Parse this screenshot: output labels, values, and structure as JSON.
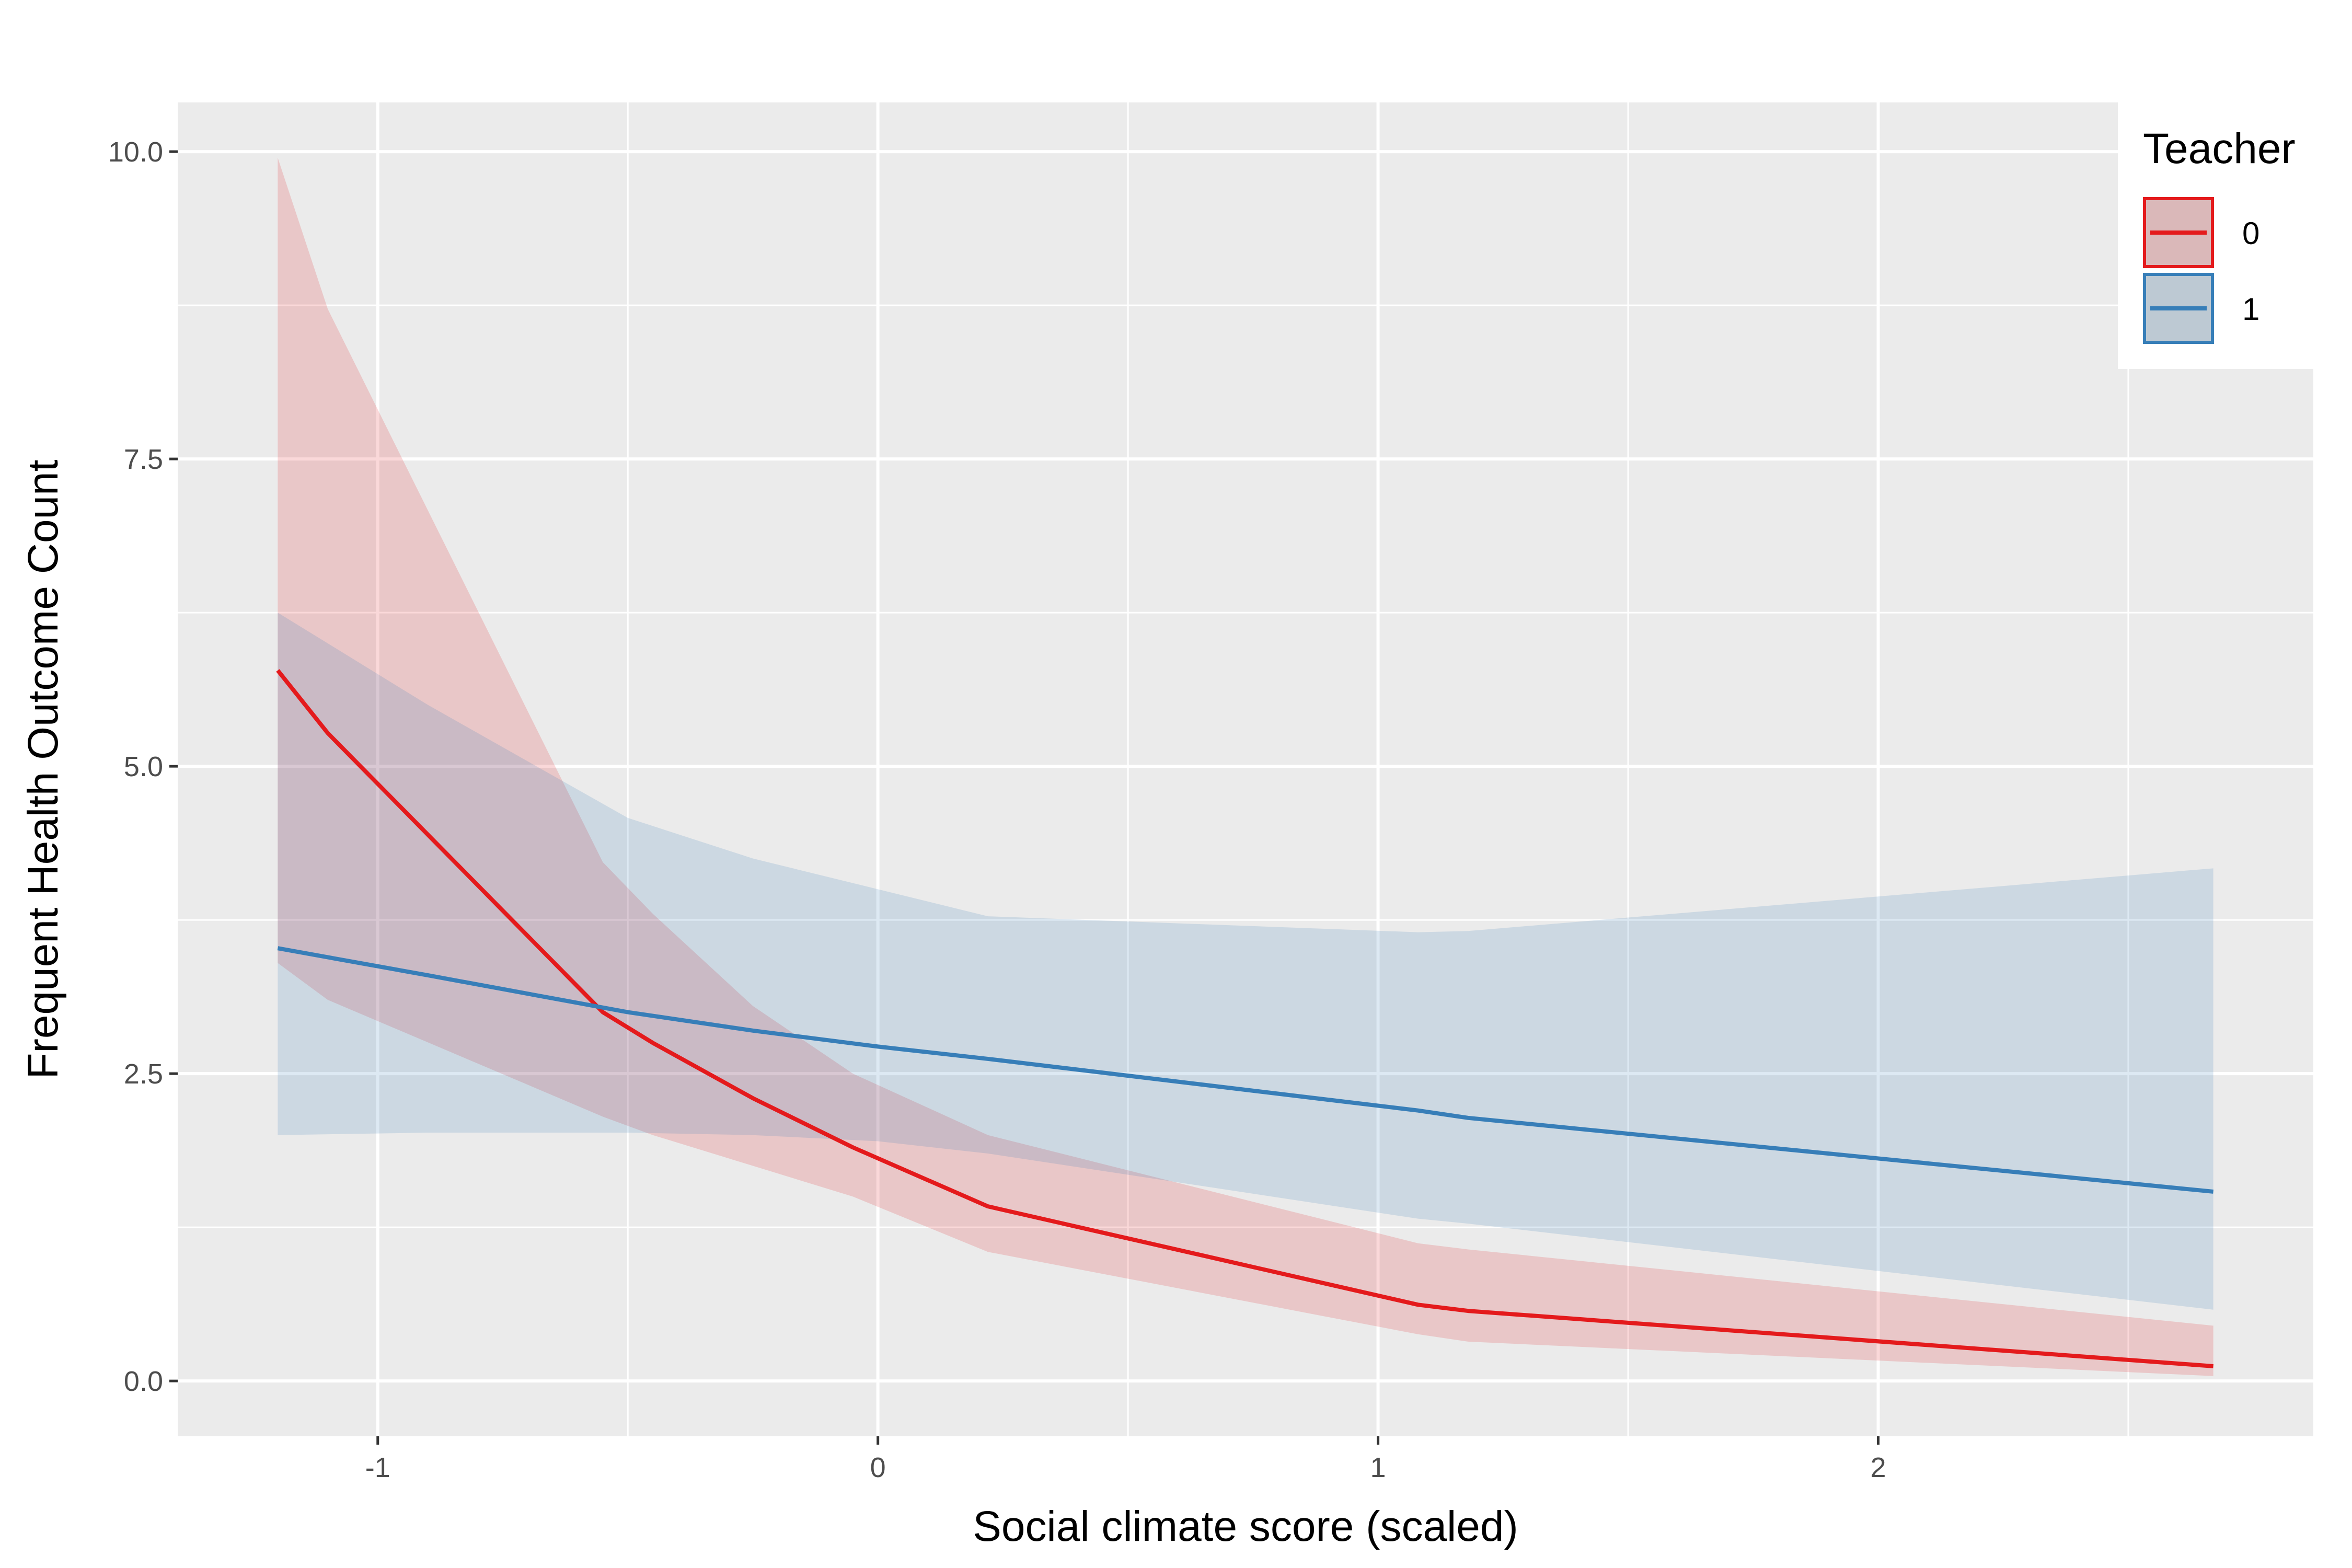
{
  "chart_data": {
    "type": "line",
    "title": "",
    "xlabel": "Social climate score (scaled)",
    "ylabel": "Frequent Health Outcome Count",
    "xlim": [
      -1.4,
      2.87
    ],
    "ylim": [
      -0.45,
      10.4
    ],
    "x_ticks": [
      -1,
      0,
      1,
      2
    ],
    "x_tick_labels": [
      "-1",
      "0",
      "1",
      "2"
    ],
    "y_ticks": [
      0.0,
      2.5,
      5.0,
      7.5,
      10.0
    ],
    "y_tick_labels": [
      "0.0",
      "2.5",
      "5.0",
      "7.5",
      "10.0"
    ],
    "grid": true,
    "legend": {
      "title": "Teacher",
      "position": "top-right",
      "entries": [
        "0",
        "1"
      ]
    },
    "series": [
      {
        "name": "0",
        "color": "#e41a1c",
        "x": [
          -1.2,
          -1.1,
          -0.55,
          -0.45,
          -0.25,
          -0.05,
          0.22,
          1.08,
          1.18,
          2.67
        ],
        "y": [
          5.78,
          5.27,
          3.0,
          2.75,
          2.3,
          1.9,
          1.42,
          0.62,
          0.57,
          0.12
        ],
        "lower": [
          3.4,
          3.1,
          2.15,
          2.0,
          1.75,
          1.5,
          1.05,
          0.38,
          0.32,
          0.04
        ],
        "upper": [
          9.95,
          8.72,
          4.22,
          3.8,
          3.05,
          2.5,
          2.0,
          1.12,
          1.07,
          0.45
        ]
      },
      {
        "name": "1",
        "color": "#377eb8",
        "x": [
          -1.2,
          -0.9,
          -0.5,
          -0.25,
          0.0,
          0.22,
          1.08,
          1.18,
          2.67
        ],
        "y": [
          3.52,
          3.3,
          3.0,
          2.85,
          2.72,
          2.62,
          2.2,
          2.14,
          1.54
        ],
        "lower": [
          2.0,
          2.02,
          2.02,
          2.0,
          1.95,
          1.85,
          1.32,
          1.28,
          0.58
        ],
        "upper": [
          6.25,
          5.5,
          4.58,
          4.25,
          4.0,
          3.78,
          3.65,
          3.66,
          4.17
        ]
      }
    ]
  }
}
